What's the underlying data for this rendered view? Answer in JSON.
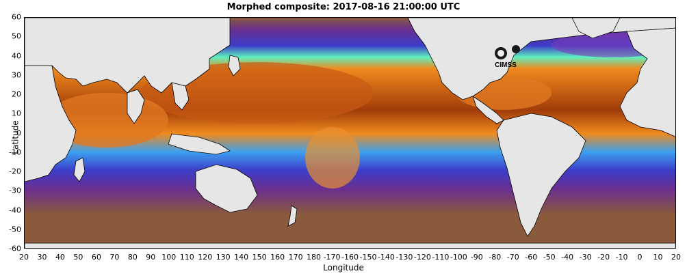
{
  "title": "Morphed composite: 2017-08-16 21:00:00 UTC",
  "xlabel": "Longitude",
  "ylabel": "Latitude",
  "logo": {
    "icon": "cimss-logo",
    "text": "CIMSS"
  },
  "x_ticks": [
    "20",
    "30",
    "40",
    "50",
    "60",
    "70",
    "80",
    "90",
    "100",
    "110",
    "120",
    "130",
    "140",
    "150",
    "160",
    "170",
    "180",
    "-170",
    "-160",
    "-150",
    "-140",
    "-130",
    "-120",
    "-110",
    "-100",
    "-90",
    "-80",
    "-70",
    "-60",
    "-50",
    "-40",
    "-30",
    "-20",
    "-10",
    "0",
    "10",
    "20"
  ],
  "y_ticks": [
    "60",
    "50",
    "40",
    "30",
    "20",
    "10",
    "0",
    "-10",
    "-20",
    "-30",
    "-40",
    "-50",
    "-60"
  ],
  "colors": {
    "land": "#e6e6e6",
    "coastline": "#000000",
    "very_dry": "#8a5a3c",
    "dry": "#6a2f8f",
    "low": "#3c3cc8",
    "mid_low": "#3ca0f0",
    "mid": "#5ef0c0",
    "mid_high": "#f0e050",
    "high": "#f08a1e",
    "very_high": "#a03c0a"
  }
}
